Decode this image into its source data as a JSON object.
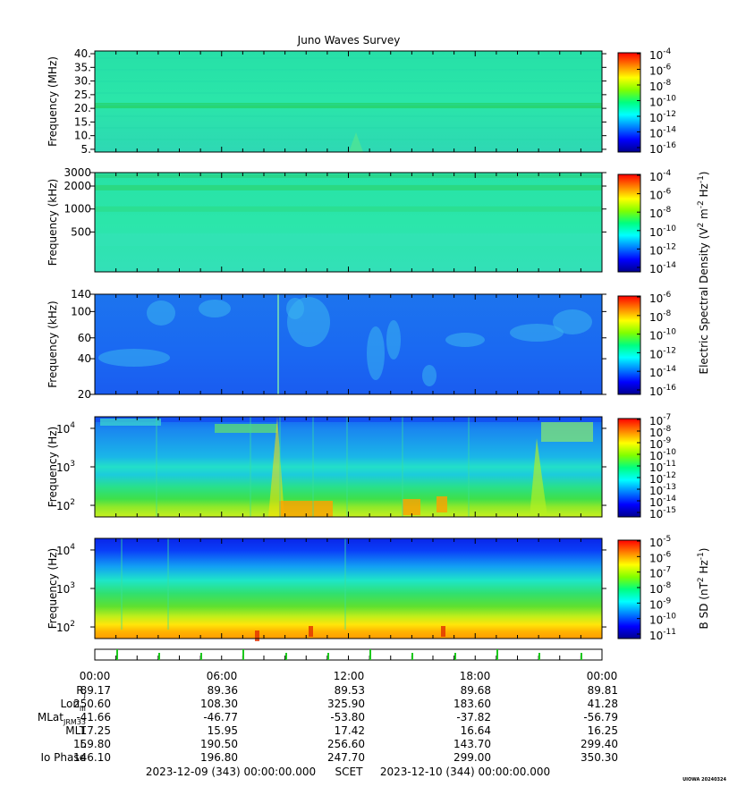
{
  "chart_data": {
    "type": "heatmap",
    "title": "Juno Waves Survey",
    "panels": [
      {
        "ylabel": "Frequency (MHz)",
        "yscale": "linear",
        "ylim": [
          4,
          41
        ],
        "yticks": [
          "5.",
          "10.",
          "15.",
          "20.",
          "25.",
          "30.",
          "35.",
          "40."
        ],
        "ytick_values": [
          5,
          10,
          15,
          20,
          25,
          30,
          35,
          40
        ],
        "colorbar": {
          "labels": [
            "10-4",
            "10-6",
            "10-8",
            "10-10",
            "10-12",
            "10-14",
            "10-16"
          ],
          "exp": [
            "-4",
            "-6",
            "-8",
            "-10",
            "-12",
            "-14",
            "-16"
          ]
        },
        "dominant_color": "#25e3a4",
        "features": [
          {
            "kind": "band",
            "y": 21,
            "color": "#27d36a"
          }
        ]
      },
      {
        "ylabel": "Frequency (kHz)",
        "yscale": "log",
        "ylim": [
          150,
          3000
        ],
        "yticks": [
          "3000",
          "2000",
          "1000",
          "500"
        ],
        "ytick_values": [
          3000,
          2000,
          1000,
          500
        ],
        "colorbar": {
          "exp": [
            "-4",
            "-6",
            "-8",
            "-10",
            "-12",
            "-14"
          ]
        },
        "dominant_color": "#28e4a8",
        "features": [
          {
            "kind": "band",
            "y": 1900,
            "color": "#2bd77b"
          },
          {
            "kind": "band",
            "y": 1000,
            "color": "#2cde8e"
          }
        ]
      },
      {
        "ylabel": "Frequency (kHz)",
        "yscale": "log",
        "ylim": [
          20,
          140
        ],
        "yticks": [
          "140",
          "100",
          "60",
          "40",
          "20"
        ],
        "ytick_values": [
          140,
          100,
          60,
          40,
          20
        ],
        "colorbar": {
          "exp": [
            "-6",
            "-8",
            "-10",
            "-12",
            "-14",
            "-16"
          ]
        },
        "dominant_color": "#1c6cf0"
      },
      {
        "ylabel": "Frequency (Hz)",
        "yscale": "log",
        "ylim": [
          50,
          20000
        ],
        "yticks": [
          "10",
          "10",
          "10"
        ],
        "ytick_exp": [
          "4",
          "3",
          "2"
        ],
        "ytick_values": [
          10000,
          1000,
          100
        ],
        "colorbar": {
          "exp": [
            "-7",
            "-8",
            "-9",
            "-10",
            "-11",
            "-12",
            "-13",
            "-14",
            "-15"
          ]
        },
        "dominant_color": "#1aa8e0"
      },
      {
        "ylabel": "Frequency (Hz)",
        "yscale": "log",
        "ylim": [
          50,
          20000
        ],
        "yticks": [
          "10",
          "10",
          "10"
        ],
        "ytick_exp": [
          "4",
          "3",
          "2"
        ],
        "ytick_values": [
          10000,
          1000,
          100
        ],
        "colorbar": {
          "exp": [
            "-5",
            "-6",
            "-7",
            "-8",
            "-9",
            "-10",
            "-11"
          ]
        },
        "dominant_color": "#35d46a"
      }
    ],
    "colorbar_label_e": "Electric Spectral Density (V² m⁻² Hz⁻¹)",
    "colorbar_label_e_parts": {
      "a": "Electric Spectral Density (V",
      "sup1": "2",
      "b": " m",
      "sup2": "-2",
      "c": " Hz",
      "sup3": "-1",
      "d": ")"
    },
    "colorbar_label_b_parts": {
      "a": "B SD (nT",
      "sup1": "2",
      "b": " Hz",
      "sup2": "-1",
      "c": ")"
    },
    "time_ticks": [
      "00:00",
      "06:00",
      "12:00",
      "18:00",
      "00:00"
    ],
    "ephemeris": {
      "labels": [
        "R",
        "Lon",
        "MLat",
        "MLT",
        "L",
        "Io Phase"
      ],
      "label_subs": [
        "J",
        "III",
        "JRM33",
        "",
        "",
        ""
      ],
      "rows": [
        [
          "89.17",
          "89.36",
          "89.53",
          "89.68",
          "89.81"
        ],
        [
          "250.60",
          "108.30",
          "325.90",
          "183.60",
          "41.28"
        ],
        [
          "-41.66",
          "-46.77",
          "-53.80",
          "-37.82",
          "-56.79"
        ],
        [
          "17.25",
          "15.95",
          "17.42",
          "16.64",
          "16.25"
        ],
        [
          "159.80",
          "190.50",
          "256.60",
          "143.70",
          "299.40"
        ],
        [
          "146.10",
          "196.80",
          "247.70",
          "299.00",
          "350.30"
        ]
      ]
    },
    "footer": {
      "start": "2023-12-09 (343) 00:00:00.000",
      "mid": "SCET",
      "end": "2023-12-10 (344) 00:00:00.000"
    },
    "stamp": "UIOWA 20240324",
    "colormap": [
      "#00008f",
      "#0000ff",
      "#0080ff",
      "#00ffff",
      "#00ff80",
      "#80ff00",
      "#ffff00",
      "#ff8000",
      "#ff0000"
    ]
  }
}
